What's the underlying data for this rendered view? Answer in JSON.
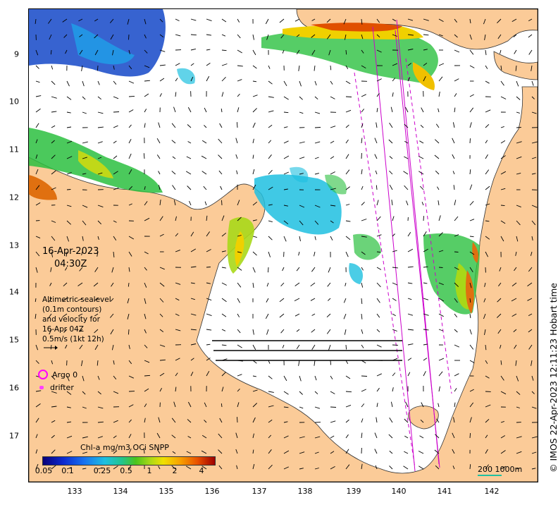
{
  "map": {
    "date": "16-Apr-2023",
    "time": "04:30Z",
    "altimetry_lines": [
      "Altimetric sealevel",
      "(0.1m contours)",
      "and velocity for",
      "16-Apr 04Z",
      "0.5m/s (1kt 12h)"
    ],
    "legend": {
      "argo": "Argo 0",
      "drifter": "drifter"
    },
    "colorbar": {
      "title": "Chl-a mg/m3 OCi SNPP",
      "ticks": [
        "0.05",
        "0.1",
        "0.25",
        "0.5",
        "1",
        "2",
        "4"
      ]
    },
    "scale_label": "200  1000m",
    "watermark": "© IMOS 22-Apr-2023 12:11:23 Hobart time",
    "x_ticks": [
      "133",
      "134",
      "135",
      "136",
      "137",
      "138",
      "139",
      "140",
      "141",
      "142"
    ],
    "y_ticks": [
      "9",
      "10",
      "11",
      "12",
      "13",
      "14",
      "15",
      "16",
      "17"
    ],
    "colors": {
      "land": "#fbcb98",
      "sea": "#ffffff",
      "arrow": "#000000",
      "track": "#cc00cc"
    }
  }
}
